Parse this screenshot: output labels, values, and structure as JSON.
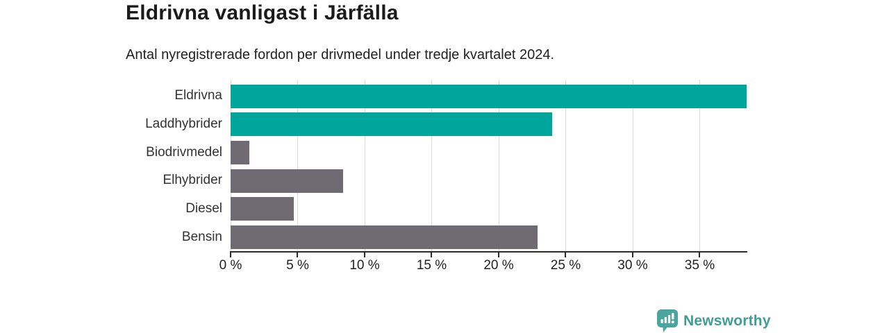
{
  "header": {
    "title": "Eldrivna vanligast i Järfälla",
    "subtitle": "Antal nyregistrerade fordon per drivmedel under tredje kvartalet 2024."
  },
  "chart_data": {
    "type": "bar",
    "orientation": "horizontal",
    "title": "Eldrivna vanligast i Järfälla",
    "subtitle": "Antal nyregistrerade fordon per drivmedel under tredje kvartalet 2024.",
    "categories": [
      "Eldrivna",
      "Laddhybrider",
      "Biodrivmedel",
      "Elhybrider",
      "Diesel",
      "Bensin"
    ],
    "values": [
      38.5,
      24.0,
      1.4,
      8.4,
      4.7,
      22.9
    ],
    "bar_colors": [
      "#00a69b",
      "#00a69b",
      "#6e6b72",
      "#6e6b72",
      "#6e6b72",
      "#6e6b72"
    ],
    "xlabel": "",
    "ylabel": "",
    "xlim": [
      0,
      38.5
    ],
    "x_ticks": [
      0,
      5,
      10,
      15,
      20,
      25,
      30,
      35
    ],
    "x_tick_labels": [
      "0 %",
      "5 %",
      "10 %",
      "15 %",
      "20 %",
      "25 %",
      "30 %",
      "35 %"
    ],
    "grid": true,
    "legend": false,
    "colors": {
      "accent_teal": "#00a69b",
      "neutral_gray": "#6e6b72",
      "gridline": "#d9d9d9",
      "axis": "#2b2b2b",
      "title_text": "#1b1b1b",
      "label_text": "#333333"
    }
  },
  "footer": {
    "brand": "Newsworthy",
    "logo_icon": "bar-chart-speech-bubble-icon",
    "brand_color": "#3f9d96",
    "logo_fill": "#4aa59f"
  }
}
